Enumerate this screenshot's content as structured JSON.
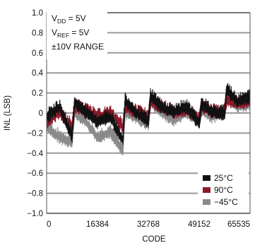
{
  "chart_data": {
    "type": "line",
    "title": "",
    "xlabel": "CODE",
    "ylabel": "INL (LSB)",
    "xlim": [
      0,
      65535
    ],
    "ylim": [
      -1.0,
      1.0
    ],
    "x_ticks": [
      0,
      16384,
      32768,
      49152,
      65535
    ],
    "x_tick_labels": [
      "0",
      "16384",
      "32768",
      "49152",
      "65535"
    ],
    "y_ticks": [
      -1.0,
      -0.8,
      -0.6,
      -0.4,
      -0.2,
      0,
      0.2,
      0.4,
      0.6,
      0.8,
      1.0
    ],
    "y_tick_labels": [
      "−1.0",
      "−0.8",
      "−0.6",
      "−0.4",
      "−0.2",
      "0",
      "0.2",
      "0.4",
      "0.6",
      "0.8",
      "1.0"
    ],
    "grid": true,
    "conditions": {
      "vdd": {
        "main": "V",
        "sub": "DD",
        "rest": " = 5V"
      },
      "vref": {
        "main": "V",
        "sub": "REF",
        "rest": " = 5V"
      },
      "range": "±10V RANGE"
    },
    "legend_position": "bottom-right",
    "series": [
      {
        "name": "25°C",
        "color": "#111111",
        "points": [
          [
            0,
            -0.05
          ],
          [
            4096,
            0.05
          ],
          [
            8192,
            -0.25
          ],
          [
            9000,
            0.1
          ],
          [
            12288,
            0.0
          ],
          [
            16384,
            -0.1
          ],
          [
            20480,
            -0.05
          ],
          [
            24576,
            -0.28
          ],
          [
            25300,
            0.12
          ],
          [
            28672,
            0.0
          ],
          [
            32768,
            -0.1
          ],
          [
            33500,
            0.17
          ],
          [
            36864,
            0.05
          ],
          [
            40960,
            0.0
          ],
          [
            45056,
            0.05
          ],
          [
            49152,
            -0.12
          ],
          [
            49900,
            0.08
          ],
          [
            53248,
            0.0
          ],
          [
            57344,
            -0.02
          ],
          [
            58000,
            0.23
          ],
          [
            61440,
            0.1
          ],
          [
            65535,
            0.15
          ]
        ]
      },
      {
        "name": "90°C",
        "color": "#8b1a2b",
        "points": [
          [
            0,
            -0.1
          ],
          [
            4096,
            0.0
          ],
          [
            8192,
            -0.15
          ],
          [
            9000,
            0.05
          ],
          [
            12288,
            0.02
          ],
          [
            16384,
            -0.05
          ],
          [
            20480,
            0.0
          ],
          [
            24576,
            -0.15
          ],
          [
            25300,
            0.05
          ],
          [
            28672,
            0.0
          ],
          [
            32768,
            -0.05
          ],
          [
            33500,
            0.1
          ],
          [
            36864,
            0.05
          ],
          [
            40960,
            0.0
          ],
          [
            45056,
            0.02
          ],
          [
            49152,
            -0.08
          ],
          [
            49900,
            0.05
          ],
          [
            53248,
            0.0
          ],
          [
            57344,
            0.0
          ],
          [
            58000,
            0.12
          ],
          [
            61440,
            0.08
          ],
          [
            65535,
            0.1
          ]
        ]
      },
      {
        "name": "−45°C",
        "color": "#8a8a8a",
        "points": [
          [
            0,
            -0.15
          ],
          [
            4096,
            -0.25
          ],
          [
            8192,
            -0.3
          ],
          [
            9000,
            0.0
          ],
          [
            12288,
            -0.08
          ],
          [
            16384,
            -0.25
          ],
          [
            20480,
            -0.2
          ],
          [
            24576,
            -0.38
          ],
          [
            25300,
            0.0
          ],
          [
            28672,
            -0.05
          ],
          [
            32768,
            -0.12
          ],
          [
            33500,
            0.1
          ],
          [
            36864,
            0.0
          ],
          [
            40960,
            -0.08
          ],
          [
            45056,
            0.0
          ],
          [
            49152,
            -0.1
          ],
          [
            49900,
            0.02
          ],
          [
            53248,
            -0.05
          ],
          [
            57344,
            0.0
          ],
          [
            58000,
            0.15
          ],
          [
            61440,
            0.05
          ],
          [
            65535,
            0.08
          ]
        ]
      }
    ]
  }
}
